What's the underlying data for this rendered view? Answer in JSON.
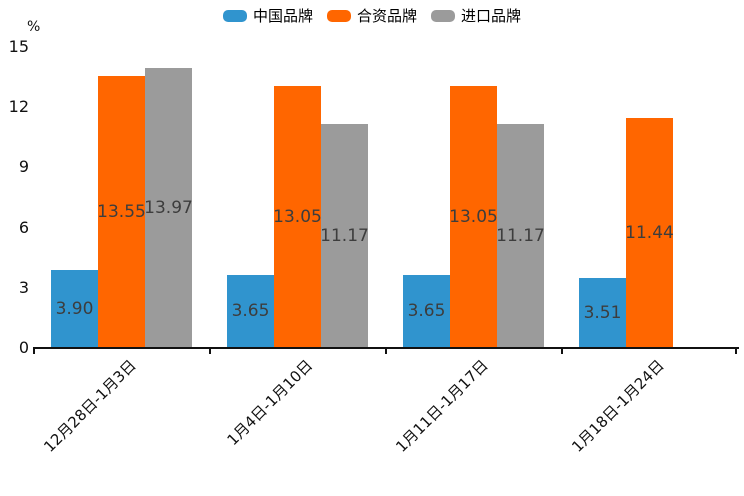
{
  "chart_data": {
    "type": "bar",
    "title": "",
    "ylabel": "%",
    "xlabel": "",
    "categories": [
      "12月28日-1月3日",
      "1月4日-1月10日",
      "1月11日-1月17日",
      "1月18日-1月24日"
    ],
    "series": [
      {
        "name": "中国品牌",
        "color": "#3094CE",
        "values": [
          3.9,
          3.65,
          3.65,
          3.51
        ],
        "labels": [
          "3.90",
          "3.65",
          "3.65",
          "3.51"
        ]
      },
      {
        "name": "合资品牌",
        "color": "#FF6600",
        "values": [
          13.55,
          13.05,
          13.05,
          11.44
        ],
        "labels": [
          "13.55",
          "13.05",
          "13.05",
          "11.44"
        ]
      },
      {
        "name": "进口品牌",
        "color": "#9B9B9B",
        "values": [
          13.97,
          11.17,
          11.17,
          null
        ],
        "labels": [
          "13.97",
          "11.17",
          "11.17",
          null
        ]
      }
    ],
    "ylim": [
      0,
      15
    ],
    "yticks": [
      0,
      3,
      6,
      9,
      12,
      15
    ],
    "grid": false,
    "legend_position": "top",
    "value_label_color": "#3d3d3d",
    "axis_color": "#111111"
  }
}
